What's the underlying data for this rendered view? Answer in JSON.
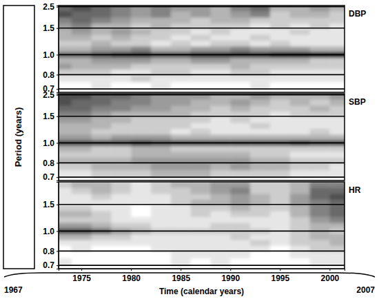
{
  "figure": {
    "ylabel": "Period (years)",
    "xlabel": "Time (calendar years)",
    "span": [
      1967,
      2007
    ]
  },
  "chart_data": [
    {
      "type": "heatmap",
      "title": "DBP",
      "xlim": [
        1972.7,
        2001.5
      ],
      "ylim": [
        0.68,
        2.6
      ],
      "yticks": [
        2.5,
        1.5,
        {
          "value": 1,
          "label": "1.0"
        },
        0.8,
        0.7
      ],
      "grid": true,
      "tick_labels": "y",
      "x": [
        1973,
        1975,
        1977,
        1979,
        1981,
        1983,
        1985,
        1987,
        1989,
        1991,
        1993,
        1995,
        1997,
        1999,
        2001
      ],
      "y": [
        2.4,
        2.0,
        1.75,
        1.55,
        1.4,
        1.27,
        1.16,
        1.07,
        1.0,
        0.93,
        0.87,
        0.82,
        0.77,
        0.72
      ],
      "zlim": [
        0,
        9
      ],
      "cells": [
        [
          6,
          7,
          6,
          5,
          4,
          5,
          4,
          4,
          3,
          5,
          6,
          3,
          3,
          4,
          3
        ],
        [
          7,
          6,
          6,
          5,
          4,
          5,
          3,
          4,
          3,
          4,
          5,
          2,
          3,
          3,
          2
        ],
        [
          5,
          6,
          5,
          4,
          3,
          3,
          3,
          2,
          3,
          3,
          2,
          2,
          2,
          2,
          2
        ],
        [
          4,
          5,
          3,
          3,
          2,
          3,
          2,
          2,
          2,
          2,
          1,
          2,
          1,
          2,
          1
        ],
        [
          3,
          4,
          3,
          4,
          3,
          2,
          2,
          1,
          2,
          1,
          1,
          1,
          2,
          1,
          1
        ],
        [
          3,
          3,
          2,
          3,
          2,
          2,
          1,
          2,
          1,
          1,
          2,
          1,
          1,
          1,
          1
        ],
        [
          2,
          2,
          3,
          2,
          2,
          1,
          2,
          1,
          2,
          2,
          1,
          2,
          1,
          1,
          1
        ],
        [
          3,
          3,
          4,
          4,
          5,
          3,
          3,
          4,
          4,
          5,
          4,
          4,
          4,
          3,
          3
        ],
        [
          6,
          6,
          7,
          8,
          8,
          7,
          7,
          8,
          8,
          8,
          8,
          9,
          9,
          9,
          9
        ],
        [
          3,
          3,
          4,
          4,
          4,
          3,
          3,
          4,
          4,
          3,
          3,
          3,
          3,
          2,
          2
        ],
        [
          4,
          3,
          3,
          3,
          2,
          2,
          2,
          2,
          2,
          3,
          2,
          2,
          2,
          2,
          2
        ],
        [
          2,
          2,
          2,
          1,
          1,
          2,
          2,
          1,
          1,
          2,
          2,
          1,
          1,
          1,
          1
        ],
        [
          1,
          1,
          1,
          1,
          2,
          1,
          1,
          1,
          1,
          1,
          1,
          1,
          1,
          1,
          1
        ],
        [
          0,
          0,
          1,
          0,
          0,
          1,
          0,
          0,
          0,
          0,
          1,
          0,
          0,
          0,
          0
        ]
      ]
    },
    {
      "type": "heatmap",
      "title": "SBP",
      "xlim": [
        1972.7,
        2001.5
      ],
      "ylim": [
        0.68,
        2.6
      ],
      "yticks": [
        2.5,
        1.5,
        {
          "value": 1,
          "label": "1.0"
        },
        0.8,
        0.7
      ],
      "grid": true,
      "tick_labels": "y",
      "x": [
        1973,
        1975,
        1977,
        1979,
        1981,
        1983,
        1985,
        1987,
        1989,
        1991,
        1993,
        1995,
        1997,
        1999,
        2001
      ],
      "y": [
        2.4,
        2.0,
        1.75,
        1.55,
        1.4,
        1.27,
        1.16,
        1.07,
        1.0,
        0.93,
        0.87,
        0.82,
        0.77,
        0.72
      ],
      "zlim": [
        0,
        9
      ],
      "cells": [
        [
          7,
          7,
          6,
          6,
          5,
          4,
          4,
          4,
          3,
          3,
          4,
          3,
          3,
          3,
          4
        ],
        [
          7,
          6,
          6,
          5,
          5,
          4,
          4,
          3,
          3,
          4,
          3,
          2,
          3,
          2,
          3
        ],
        [
          6,
          6,
          5,
          5,
          4,
          4,
          3,
          3,
          2,
          3,
          2,
          2,
          2,
          3,
          2
        ],
        [
          5,
          5,
          4,
          3,
          3,
          3,
          3,
          2,
          2,
          2,
          2,
          1,
          2,
          2,
          2
        ],
        [
          4,
          4,
          3,
          3,
          2,
          2,
          2,
          2,
          1,
          2,
          1,
          1,
          1,
          1,
          1
        ],
        [
          3,
          3,
          3,
          2,
          2,
          2,
          2,
          1,
          1,
          1,
          2,
          1,
          1,
          1,
          1
        ],
        [
          3,
          3,
          2,
          2,
          2,
          2,
          1,
          2,
          1,
          1,
          1,
          1,
          1,
          2,
          1
        ],
        [
          4,
          4,
          3,
          4,
          4,
          4,
          3,
          3,
          3,
          3,
          3,
          3,
          3,
          3,
          3
        ],
        [
          7,
          7,
          7,
          7,
          8,
          7,
          7,
          7,
          7,
          7,
          7,
          7,
          8,
          7,
          7
        ],
        [
          3,
          3,
          2,
          2,
          3,
          3,
          2,
          2,
          2,
          2,
          2,
          2,
          2,
          2,
          2
        ],
        [
          2,
          2,
          2,
          2,
          3,
          3,
          3,
          3,
          3,
          3,
          2,
          2,
          1,
          1,
          1
        ],
        [
          3,
          3,
          3,
          3,
          4,
          4,
          4,
          4,
          4,
          4,
          3,
          3,
          2,
          2,
          2
        ],
        [
          2,
          2,
          3,
          3,
          3,
          4,
          4,
          4,
          3,
          4,
          3,
          3,
          2,
          2,
          1
        ],
        [
          1,
          1,
          2,
          2,
          2,
          3,
          3,
          3,
          2,
          2,
          2,
          2,
          1,
          1,
          1
        ]
      ]
    },
    {
      "type": "heatmap",
      "title": "HR",
      "xlim": [
        1972.7,
        2001.5
      ],
      "ylim": [
        0.68,
        2.6
      ],
      "xticks": [
        1975,
        1980,
        1985,
        1990,
        1995,
        2000
      ],
      "yticks": [
        1.5,
        {
          "value": 1,
          "label": "1.0"
        },
        0.8,
        0.7
      ],
      "grid": true,
      "x": [
        1973,
        1975,
        1977,
        1979,
        1981,
        1983,
        1985,
        1987,
        1989,
        1991,
        1993,
        1995,
        1997,
        1999,
        2001
      ],
      "y": [
        2.4,
        2.0,
        1.75,
        1.55,
        1.4,
        1.27,
        1.16,
        1.07,
        1.0,
        0.93,
        0.87,
        0.82,
        0.77,
        0.72
      ],
      "zlim": [
        0,
        9
      ],
      "cells": [
        [
          2,
          3,
          3,
          2,
          1,
          2,
          3,
          3,
          4,
          4,
          2,
          2,
          3,
          5,
          5
        ],
        [
          1,
          2,
          3,
          2,
          1,
          2,
          2,
          3,
          4,
          5,
          2,
          2,
          3,
          6,
          6
        ],
        [
          1,
          1,
          2,
          1,
          1,
          1,
          2,
          2,
          3,
          4,
          3,
          2,
          4,
          6,
          7
        ],
        [
          1,
          1,
          1,
          1,
          1,
          1,
          2,
          3,
          3,
          4,
          3,
          2,
          4,
          5,
          6
        ],
        [
          2,
          2,
          1,
          1,
          0,
          1,
          1,
          2,
          2,
          3,
          2,
          2,
          3,
          5,
          6
        ],
        [
          3,
          3,
          2,
          1,
          0,
          1,
          1,
          2,
          1,
          2,
          2,
          1,
          3,
          5,
          6
        ],
        [
          2,
          2,
          2,
          1,
          1,
          1,
          1,
          1,
          1,
          1,
          1,
          1,
          2,
          4,
          5
        ],
        [
          4,
          4,
          3,
          2,
          2,
          1,
          1,
          1,
          2,
          2,
          1,
          1,
          2,
          3,
          3
        ],
        [
          7,
          7,
          6,
          4,
          3,
          2,
          2,
          2,
          2,
          2,
          2,
          1,
          2,
          3,
          2
        ],
        [
          3,
          3,
          2,
          2,
          1,
          1,
          1,
          1,
          1,
          2,
          1,
          1,
          2,
          3,
          3
        ],
        [
          1,
          1,
          1,
          1,
          1,
          1,
          1,
          1,
          1,
          1,
          2,
          1,
          2,
          2,
          3
        ],
        [
          0,
          1,
          0,
          0,
          0,
          1,
          1,
          1,
          1,
          1,
          1,
          0,
          1,
          2,
          2
        ],
        [
          0,
          0,
          0,
          0,
          0,
          0,
          1,
          1,
          1,
          1,
          0,
          0,
          1,
          1,
          1
        ],
        [
          1,
          0,
          0,
          0,
          0,
          0,
          1,
          0,
          1,
          0,
          0,
          0,
          0,
          1,
          1
        ]
      ]
    }
  ]
}
